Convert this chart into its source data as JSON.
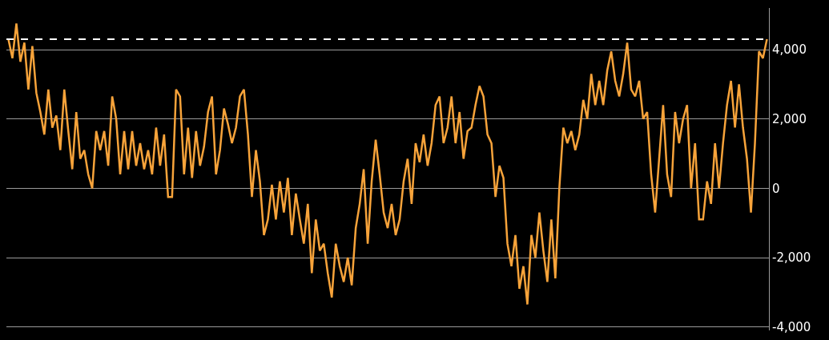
{
  "chart_data": {
    "type": "line",
    "relative": false,
    "categories": [
      null,
      null,
      null,
      null,
      null,
      null,
      null,
      null,
      null,
      null,
      null,
      null,
      null,
      null,
      null,
      null,
      null,
      null,
      null,
      null,
      null,
      null,
      null,
      null,
      null,
      null,
      null,
      null,
      null,
      null,
      null,
      null,
      null,
      null,
      null,
      null,
      null,
      null,
      null,
      null,
      null,
      null,
      null,
      null,
      null,
      null,
      null,
      null,
      null,
      null,
      null,
      null,
      null,
      null,
      null,
      null,
      null,
      null,
      null,
      null,
      null,
      null,
      null,
      null,
      null,
      null,
      null,
      null,
      null,
      null,
      null,
      null,
      null,
      null,
      null,
      null,
      null,
      null,
      null,
      null,
      null,
      null,
      null,
      null,
      null,
      null,
      null,
      null,
      null,
      null,
      null,
      null,
      null,
      null,
      null,
      null,
      null,
      null,
      null,
      null,
      null,
      null,
      null,
      null,
      null,
      null,
      null,
      null,
      null,
      null,
      null,
      null,
      null,
      null,
      null,
      null,
      null,
      null,
      null,
      null,
      null,
      null,
      null,
      null,
      null,
      null,
      null,
      null,
      null,
      null,
      null,
      null,
      null,
      null,
      null,
      null,
      null,
      null,
      null,
      null,
      null,
      null,
      null,
      null,
      null,
      null,
      null,
      null,
      null,
      null,
      null,
      null,
      null,
      null,
      null,
      null,
      null,
      null,
      null,
      null,
      null,
      null,
      null,
      null,
      null,
      null,
      null,
      null,
      null,
      null,
      null,
      null,
      null,
      null,
      null,
      null,
      null,
      null,
      null,
      null,
      null,
      null,
      null,
      null,
      null,
      null,
      null,
      null,
      null,
      null,
      null
    ],
    "series": [
      {
        "color": "#f7a33a",
        "values": [
          4300,
          3750,
          4750,
          3650,
          4200,
          2850,
          4100,
          2750,
          2200,
          1550,
          2850,
          1750,
          2100,
          1100,
          2850,
          1650,
          550,
          2200,
          850,
          1100,
          400,
          0,
          1650,
          1100,
          1650,
          650,
          2650,
          2000,
          400,
          1650,
          550,
          1650,
          650,
          1300,
          550,
          1100,
          400,
          1750,
          650,
          1550,
          -250,
          -250,
          2850,
          2650,
          400,
          1750,
          300,
          1650,
          650,
          1200,
          2200,
          2650,
          400,
          1100,
          2300,
          1850,
          1300,
          1750,
          2650,
          2850,
          1550,
          -250,
          1100,
          200,
          -1350,
          -900,
          100,
          -900,
          200,
          -700,
          300,
          -1350,
          -150,
          -900,
          -1600,
          -450,
          -2450,
          -900,
          -1800,
          -1600,
          -2450,
          -3150,
          -1600,
          -2250,
          -2700,
          -2000,
          -2800,
          -1150,
          -450,
          550,
          -1600,
          200,
          1400,
          400,
          -700,
          -1150,
          -450,
          -1350,
          -900,
          200,
          850,
          -450,
          1300,
          750,
          1550,
          650,
          1300,
          2400,
          2650,
          1300,
          1750,
          2650,
          1300,
          2200,
          850,
          1650,
          1750,
          2400,
          2950,
          2650,
          1550,
          1300,
          -250,
          650,
          300,
          -1600,
          -2250,
          -1350,
          -2900,
          -2250,
          -3350,
          -1350,
          -2000,
          -700,
          -1800,
          -2700,
          -900,
          -2600,
          0,
          1750,
          1300,
          1650,
          1100,
          1550,
          2550,
          2000,
          3300,
          2400,
          3100,
          2400,
          3400,
          3950,
          3100,
          2650,
          3300,
          4200,
          2850,
          2650,
          3100,
          2000,
          2200,
          400,
          -700,
          850,
          2400,
          400,
          -250,
          2200,
          1300,
          2000,
          2400,
          0,
          1300,
          -900,
          -900,
          200,
          -450,
          1300,
          0,
          1300,
          2400,
          3100,
          1750,
          3000,
          1750,
          850,
          -700,
          1300,
          3950,
          3750,
          4300
        ]
      }
    ],
    "ylim": [
      -4100,
      5200
    ],
    "yticks": [
      {
        "value": 4000,
        "label": "4,000"
      },
      {
        "value": 2000,
        "label": "2,000"
      },
      0,
      {
        "value": -2000,
        "label": "-2,000"
      },
      {
        "value": -4000,
        "label": "-4,000"
      }
    ],
    "grid": "y",
    "legend": false,
    "tick_labels": "y",
    "line_style": "solid",
    "marker": "none",
    "ref_lines": [
      {
        "axis": "y",
        "value": 4300,
        "color": "#ffffff",
        "line_style": "dashed"
      }
    ]
  }
}
